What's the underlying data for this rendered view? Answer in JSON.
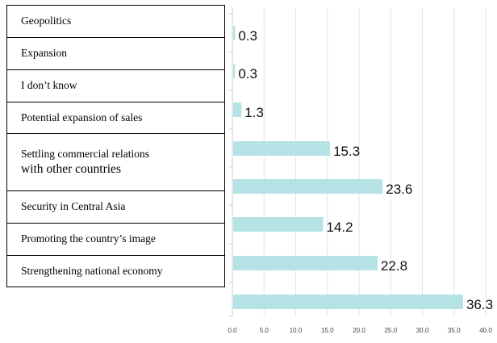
{
  "chart_data": {
    "type": "bar",
    "orientation": "horizontal",
    "categories": [
      {
        "text": "Geopolitics"
      },
      {
        "text": "Expansion"
      },
      {
        "text": "I don’t know"
      },
      {
        "text": "Potential expansion of sales"
      },
      {
        "text": "Settling commercial relations",
        "text2": "with other countries"
      },
      {
        "text": "Security in Central Asia"
      },
      {
        "text": "Promoting the country’s  image"
      },
      {
        "text": "Strengthening national economy"
      }
    ],
    "values": [
      0.3,
      0.3,
      1.3,
      15.3,
      23.6,
      14.2,
      22.8,
      36.3
    ],
    "xlim": [
      0,
      40
    ],
    "xticks": [
      "0.0",
      "5.0",
      "10.0",
      "15.0",
      "20.0",
      "25.0",
      "30.0",
      "35.0",
      "40.0"
    ],
    "bar_color": "#b5e3e5",
    "grid": true,
    "grid_color": "#e3e3e3"
  }
}
